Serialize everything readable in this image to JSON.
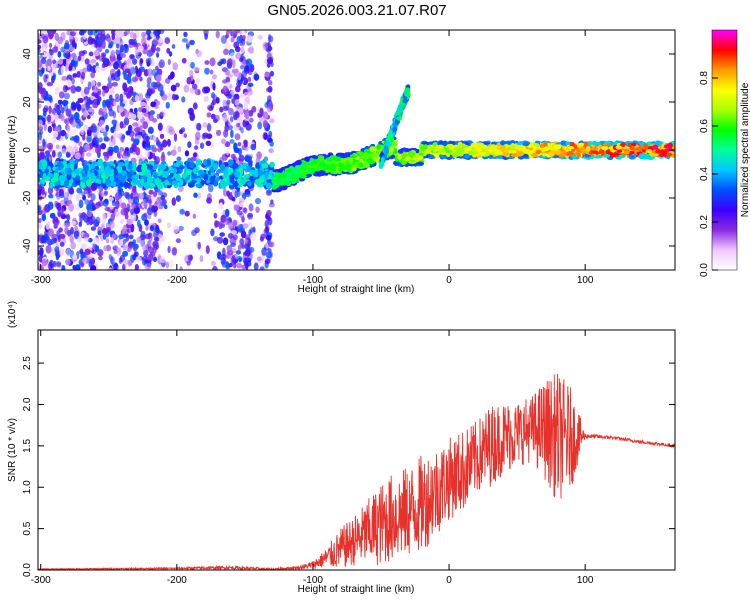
{
  "figure": {
    "title": "GN05.2026.003.21.07.R07"
  },
  "chart_data": [
    {
      "type": "heatmap",
      "xlabel": "Height of straight line (km)",
      "ylabel": "Frequency (Hz)",
      "xlim": [
        -302,
        166
      ],
      "ylim": [
        -50,
        50
      ],
      "x_ticks": [
        "-300",
        "-200",
        "-100",
        "0",
        "100"
      ],
      "y_ticks": [
        "-40",
        "-20",
        "0",
        "20",
        "40"
      ],
      "colorbar": {
        "label": "Normalized spectral amplitude",
        "range": [
          0,
          1
        ],
        "ticks": [
          "0.0",
          "0.2",
          "0.4",
          "0.6",
          "0.8"
        ],
        "colors": [
          "#ffffff",
          "#f0c8ff",
          "#8a2be2",
          "#3a00ff",
          "#0050ff",
          "#00c8ff",
          "#00ff9a",
          "#00ff00",
          "#aaff00",
          "#ffff00",
          "#ff9900",
          "#ff0000",
          "#ff00ff"
        ]
      },
      "regions": [
        {
          "name": "noise",
          "x": [
            -302,
            -130
          ],
          "freq": [
            -50,
            50
          ],
          "amplitude": [
            0.05,
            0.35
          ]
        },
        {
          "name": "carrier",
          "x": [
            -130,
            166
          ],
          "freq_start": -12,
          "freq_end": 0,
          "amplitude": [
            0.4,
            1.0
          ]
        },
        {
          "name": "branch",
          "x": [
            -50,
            -30
          ],
          "freq": [
            -5,
            25
          ],
          "amplitude": [
            0.3,
            0.6
          ]
        }
      ]
    },
    {
      "type": "line",
      "xlabel": "Height of straight line (km)",
      "ylabel": "SNR (10 * v/v)",
      "y_exponent_label": "(x10⁴)",
      "xlim": [
        -302,
        166
      ],
      "ylim": [
        0,
        2.9
      ],
      "x_ticks": [
        "-300",
        "-200",
        "-100",
        "0",
        "100"
      ],
      "y_ticks": [
        "0.0",
        "0.5",
        "1.0",
        "1.5",
        "2.0",
        "2.5"
      ],
      "series": [
        {
          "color": "#e8312a",
          "envelope": {
            "x": [
              -302,
              -200,
              -160,
              -130,
              -110,
              -100,
              -90,
              -80,
              -70,
              -60,
              -50,
              -40,
              -30,
              -20,
              -10,
              0,
              10,
              20,
              30,
              40,
              50,
              60,
              70,
              80,
              90,
              100,
              120,
              140,
              166
            ],
            "mean": [
              0.01,
              0.02,
              0.03,
              0.01,
              0.03,
              0.06,
              0.15,
              0.25,
              0.35,
              0.45,
              0.55,
              0.65,
              0.7,
              0.8,
              0.95,
              1.1,
              1.2,
              1.35,
              1.5,
              1.6,
              1.65,
              1.7,
              1.7,
              1.6,
              1.6,
              1.62,
              1.6,
              1.55,
              1.5
            ],
            "noise": [
              0.005,
              0.01,
              0.02,
              0.01,
              0.02,
              0.05,
              0.12,
              0.25,
              0.3,
              0.4,
              0.5,
              0.55,
              0.55,
              0.6,
              0.55,
              0.5,
              0.5,
              0.45,
              0.5,
              0.45,
              0.4,
              0.4,
              0.6,
              0.8,
              0.6,
              0.03,
              0.02,
              0.02,
              0.02
            ]
          }
        }
      ]
    }
  ]
}
